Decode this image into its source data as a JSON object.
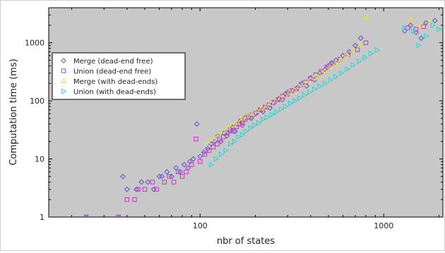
{
  "chart_data": {
    "type": "scatter",
    "title": "",
    "xlabel": "nbr of states",
    "ylabel": "Computation time (ms)",
    "xscale": "log",
    "yscale": "log",
    "xlim": [
      15,
      2100
    ],
    "ylim": [
      1,
      4000
    ],
    "x_ticks": [
      100,
      1000
    ],
    "y_ticks": [
      1,
      10,
      100,
      1000
    ],
    "grid": false,
    "background": "#c8c8c8",
    "legend_position": "top-left",
    "series": [
      {
        "name": "Merge (dead-end free)",
        "marker": "diamond",
        "color": "#5b55c4",
        "points": [
          [
            24,
            1
          ],
          [
            36,
            1
          ],
          [
            38,
            5
          ],
          [
            40,
            3
          ],
          [
            45,
            3
          ],
          [
            48,
            4
          ],
          [
            52,
            4
          ],
          [
            56,
            3
          ],
          [
            60,
            5
          ],
          [
            62,
            5
          ],
          [
            66,
            6
          ],
          [
            70,
            5
          ],
          [
            74,
            7
          ],
          [
            78,
            6
          ],
          [
            82,
            8
          ],
          [
            86,
            7
          ],
          [
            88,
            9
          ],
          [
            92,
            10
          ],
          [
            96,
            40
          ],
          [
            100,
            11
          ],
          [
            105,
            13
          ],
          [
            110,
            15
          ],
          [
            115,
            18
          ],
          [
            120,
            20
          ],
          [
            125,
            25
          ],
          [
            130,
            20
          ],
          [
            135,
            28
          ],
          [
            140,
            25
          ],
          [
            145,
            30
          ],
          [
            150,
            35
          ],
          [
            155,
            30
          ],
          [
            160,
            40
          ],
          [
            165,
            45
          ],
          [
            170,
            38
          ],
          [
            175,
            50
          ],
          [
            180,
            55
          ],
          [
            190,
            50
          ],
          [
            200,
            60
          ],
          [
            210,
            70
          ],
          [
            220,
            65
          ],
          [
            230,
            80
          ],
          [
            240,
            75
          ],
          [
            250,
            90
          ],
          [
            260,
            100
          ],
          [
            270,
            110
          ],
          [
            280,
            105
          ],
          [
            290,
            130
          ],
          [
            300,
            140
          ],
          [
            320,
            150
          ],
          [
            340,
            170
          ],
          [
            360,
            200
          ],
          [
            380,
            180
          ],
          [
            400,
            250
          ],
          [
            420,
            230
          ],
          [
            450,
            300
          ],
          [
            480,
            350
          ],
          [
            500,
            400
          ],
          [
            520,
            450
          ],
          [
            550,
            500
          ],
          [
            600,
            600
          ],
          [
            650,
            700
          ],
          [
            700,
            900
          ],
          [
            750,
            1200
          ],
          [
            1300,
            1600
          ],
          [
            1400,
            2000
          ],
          [
            1500,
            1500
          ],
          [
            1600,
            1200
          ],
          [
            1700,
            2200
          ],
          [
            1900,
            2400
          ]
        ]
      },
      {
        "name": "Union (dead-end free)",
        "marker": "square",
        "color": "#cc33cc",
        "points": [
          [
            24,
            1
          ],
          [
            36,
            1
          ],
          [
            40,
            2
          ],
          [
            44,
            2
          ],
          [
            46,
            3
          ],
          [
            50,
            3
          ],
          [
            55,
            4
          ],
          [
            58,
            3
          ],
          [
            64,
            4
          ],
          [
            68,
            5
          ],
          [
            72,
            4
          ],
          [
            76,
            6
          ],
          [
            80,
            5
          ],
          [
            84,
            6
          ],
          [
            90,
            8
          ],
          [
            95,
            22
          ],
          [
            100,
            9
          ],
          [
            106,
            12
          ],
          [
            112,
            14
          ],
          [
            118,
            16
          ],
          [
            124,
            18
          ],
          [
            128,
            22
          ],
          [
            134,
            24
          ],
          [
            140,
            28
          ],
          [
            146,
            32
          ],
          [
            152,
            30
          ],
          [
            158,
            36
          ],
          [
            164,
            40
          ],
          [
            170,
            42
          ],
          [
            176,
            48
          ],
          [
            184,
            52
          ],
          [
            192,
            58
          ],
          [
            202,
            62
          ],
          [
            214,
            70
          ],
          [
            226,
            78
          ],
          [
            238,
            85
          ],
          [
            252,
            95
          ],
          [
            266,
            105
          ],
          [
            282,
            120
          ],
          [
            298,
            130
          ],
          [
            316,
            150
          ],
          [
            334,
            160
          ],
          [
            354,
            190
          ],
          [
            376,
            210
          ],
          [
            398,
            240
          ],
          [
            426,
            280
          ],
          [
            456,
            320
          ],
          [
            490,
            380
          ],
          [
            530,
            440
          ],
          [
            580,
            520
          ],
          [
            640,
            620
          ],
          [
            720,
            760
          ],
          [
            800,
            1000
          ],
          [
            1350,
            1800
          ],
          [
            1500,
            1700
          ],
          [
            1650,
            1900
          ]
        ]
      },
      {
        "name": "Merge (with dead-ends)",
        "marker": "triangle-up",
        "color": "#e8e040",
        "points": [
          [
            110,
            20
          ],
          [
            118,
            22
          ],
          [
            126,
            26
          ],
          [
            134,
            30
          ],
          [
            142,
            35
          ],
          [
            150,
            38
          ],
          [
            160,
            42
          ],
          [
            170,
            50
          ],
          [
            180,
            55
          ],
          [
            192,
            60
          ],
          [
            204,
            68
          ],
          [
            216,
            75
          ],
          [
            230,
            82
          ],
          [
            244,
            90
          ],
          [
            258,
            100
          ],
          [
            274,
            112
          ],
          [
            290,
            125
          ],
          [
            308,
            140
          ],
          [
            326,
            155
          ],
          [
            346,
            175
          ],
          [
            368,
            195
          ],
          [
            392,
            220
          ],
          [
            418,
            250
          ],
          [
            446,
            285
          ],
          [
            476,
            330
          ],
          [
            510,
            380
          ],
          [
            546,
            440
          ],
          [
            586,
            520
          ],
          [
            630,
            620
          ],
          [
            680,
            740
          ],
          [
            740,
            900
          ],
          [
            800,
            2800
          ],
          [
            1400,
            2500
          ],
          [
            1600,
            2000
          ],
          [
            1800,
            2300
          ]
        ]
      },
      {
        "name": "Union (with dead-ends)",
        "marker": "triangle-right",
        "color": "#20d8d8",
        "points": [
          [
            115,
            8
          ],
          [
            122,
            10
          ],
          [
            130,
            12
          ],
          [
            138,
            14
          ],
          [
            146,
            18
          ],
          [
            154,
            20
          ],
          [
            162,
            24
          ],
          [
            170,
            26
          ],
          [
            178,
            30
          ],
          [
            188,
            34
          ],
          [
            198,
            38
          ],
          [
            208,
            42
          ],
          [
            220,
            48
          ],
          [
            232,
            52
          ],
          [
            246,
            58
          ],
          [
            260,
            64
          ],
          [
            276,
            72
          ],
          [
            292,
            80
          ],
          [
            310,
            90
          ],
          [
            328,
            100
          ],
          [
            348,
            112
          ],
          [
            370,
            126
          ],
          [
            394,
            140
          ],
          [
            420,
            158
          ],
          [
            448,
            178
          ],
          [
            478,
            200
          ],
          [
            512,
            228
          ],
          [
            548,
            260
          ],
          [
            588,
            300
          ],
          [
            632,
            350
          ],
          [
            680,
            410
          ],
          [
            734,
            480
          ],
          [
            790,
            560
          ],
          [
            850,
            650
          ],
          [
            920,
            750
          ],
          [
            1300,
            1800
          ],
          [
            1450,
            1600
          ],
          [
            1550,
            900
          ],
          [
            1700,
            1300
          ],
          [
            1850,
            2000
          ],
          [
            2000,
            1700
          ]
        ]
      }
    ]
  }
}
